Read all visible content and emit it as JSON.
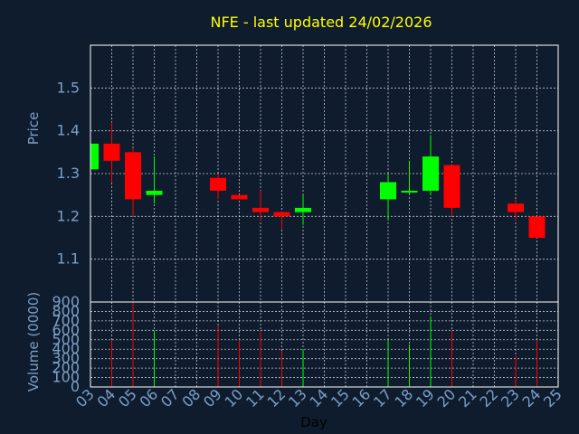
{
  "chart_data": {
    "type": "candlestick",
    "title": "NFE - last updated 24/02/2026",
    "xlabel": "Day",
    "price_panel": {
      "ylabel": "Price",
      "ylim": [
        1.0,
        1.6
      ],
      "yticks": [
        "1.1",
        "1.2",
        "1.3",
        "1.4",
        "1.5"
      ],
      "grid": true
    },
    "volume_panel": {
      "ylabel": "Volume (0000)",
      "ylim": [
        0,
        900
      ],
      "yticks": [
        "0",
        "100",
        "200",
        "300",
        "400",
        "500",
        "600",
        "700",
        "800",
        "900"
      ],
      "grid": true
    },
    "x_ticks": [
      "03",
      "04",
      "05",
      "06",
      "07",
      "08",
      "09",
      "10",
      "11",
      "12",
      "13",
      "14",
      "15",
      "16",
      "17",
      "18",
      "19",
      "20",
      "21",
      "22",
      "23",
      "24",
      "25"
    ],
    "up_color": "#00ff00",
    "down_color": "#ff0000",
    "candles": [
      {
        "day": "03",
        "open": 1.31,
        "high": 1.37,
        "low": 1.31,
        "close": 1.37,
        "volume": 0
      },
      {
        "day": "04",
        "open": 1.37,
        "high": 1.42,
        "low": 1.28,
        "close": 1.33,
        "volume": 500
      },
      {
        "day": "05",
        "open": 1.35,
        "high": 1.36,
        "low": 1.2,
        "close": 1.24,
        "volume": 900
      },
      {
        "day": "06",
        "open": 1.25,
        "high": 1.34,
        "low": 1.23,
        "close": 1.26,
        "volume": 600
      },
      {
        "day": "09",
        "open": 1.29,
        "high": 1.3,
        "low": 1.24,
        "close": 1.26,
        "volume": 650
      },
      {
        "day": "10",
        "open": 1.25,
        "high": 1.25,
        "low": 1.24,
        "close": 1.24,
        "volume": 500
      },
      {
        "day": "11",
        "open": 1.22,
        "high": 1.26,
        "low": 1.19,
        "close": 1.21,
        "volume": 600
      },
      {
        "day": "12",
        "open": 1.21,
        "high": 1.21,
        "low": 1.17,
        "close": 1.2,
        "volume": 380
      },
      {
        "day": "13",
        "open": 1.21,
        "high": 1.25,
        "low": 1.18,
        "close": 1.22,
        "volume": 400
      },
      {
        "day": "17",
        "open": 1.24,
        "high": 1.3,
        "low": 1.19,
        "close": 1.28,
        "volume": 500
      },
      {
        "day": "18",
        "open": 1.26,
        "high": 1.33,
        "low": 1.25,
        "close": 1.26,
        "volume": 450
      },
      {
        "day": "19",
        "open": 1.26,
        "high": 1.39,
        "low": 1.25,
        "close": 1.34,
        "volume": 750
      },
      {
        "day": "20",
        "open": 1.32,
        "high": 1.32,
        "low": 1.2,
        "close": 1.22,
        "volume": 600
      },
      {
        "day": "23",
        "open": 1.23,
        "high": 1.24,
        "low": 1.19,
        "close": 1.21,
        "volume": 330
      },
      {
        "day": "24",
        "open": 1.2,
        "high": 1.2,
        "low": 1.15,
        "close": 1.15,
        "volume": 500
      }
    ]
  }
}
